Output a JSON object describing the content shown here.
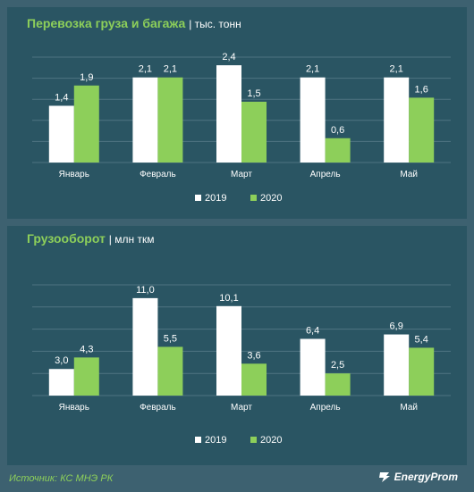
{
  "chart_data": [
    {
      "type": "bar",
      "title": "Перевозка груза и багажа",
      "unit": "тыс. тонн",
      "categories": [
        "Январь",
        "Февраль",
        "Март",
        "Апрель",
        "Май"
      ],
      "series": [
        {
          "name": "2019",
          "values": [
            1.4,
            2.1,
            2.4,
            2.1,
            2.1
          ],
          "labels": [
            "1,4",
            "2,1",
            "2,4",
            "2,1",
            "2,1"
          ],
          "color": "#ffffff"
        },
        {
          "name": "2020",
          "values": [
            1.9,
            2.1,
            1.5,
            0.6,
            1.6
          ],
          "labels": [
            "1,9",
            "2,1",
            "1,5",
            "0,6",
            "1,6"
          ],
          "color": "#8dcf5a"
        }
      ],
      "ylim": [
        0,
        2.6
      ],
      "grid": true,
      "legend": "bottom"
    },
    {
      "type": "bar",
      "title": "Грузооборот",
      "unit": "млн ткм",
      "categories": [
        "Январь",
        "Февраль",
        "Март",
        "Апрель",
        "Май"
      ],
      "series": [
        {
          "name": "2019",
          "values": [
            3.0,
            11.0,
            10.1,
            6.4,
            6.9
          ],
          "labels": [
            "3,0",
            "11,0",
            "10,1",
            "6,4",
            "6,9"
          ],
          "color": "#ffffff"
        },
        {
          "name": "2020",
          "values": [
            4.3,
            5.5,
            3.6,
            2.5,
            5.4
          ],
          "labels": [
            "4,3",
            "5,5",
            "3,6",
            "2,5",
            "5,4"
          ],
          "color": "#8dcf5a"
        }
      ],
      "ylim": [
        0,
        12.5
      ],
      "grid": true,
      "legend": "bottom"
    }
  ],
  "footer": {
    "source": "Источник: КС МНЭ РК"
  },
  "brand": {
    "name": "EnergyProm"
  }
}
